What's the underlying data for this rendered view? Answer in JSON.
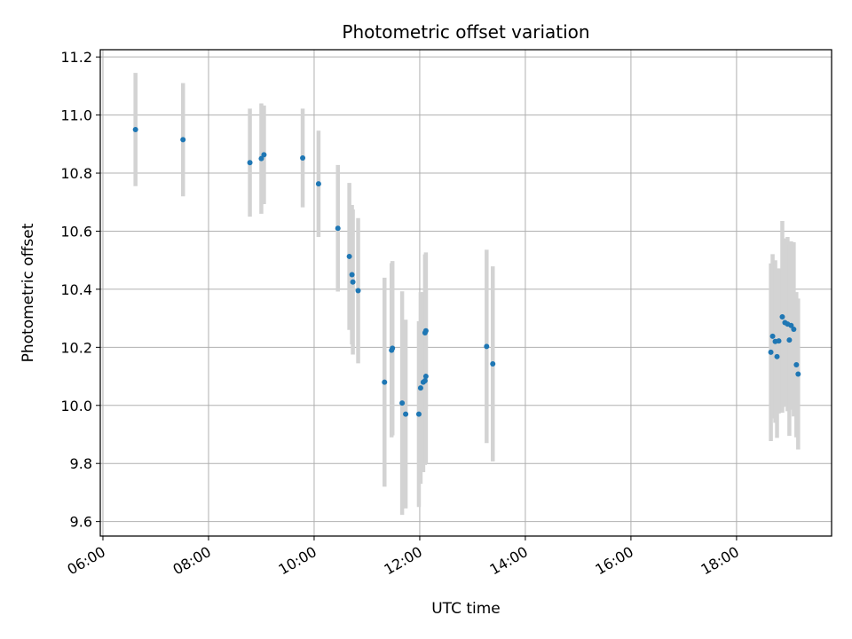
{
  "chart_data": {
    "type": "scatter",
    "title": "Photometric offset variation",
    "xlabel": "UTC time",
    "ylabel": "Photometric offset",
    "x_ticks": [
      "06:00",
      "08:00",
      "10:00",
      "12:00",
      "14:00",
      "16:00",
      "18:00"
    ],
    "y_ticks": [
      "9.6",
      "9.8",
      "10.0",
      "10.2",
      "10.4",
      "10.6",
      "10.8",
      "11.0",
      "11.2"
    ],
    "xlim": [
      "05:57",
      "19:48"
    ],
    "ylim": [
      9.55,
      11.225
    ],
    "grid": true,
    "marker_color": "#1f77b4",
    "errorbar_color": "#d3d3d3",
    "points": [
      {
        "time": "06:37",
        "value": 10.95,
        "error": 0.195
      },
      {
        "time": "07:31",
        "value": 10.915,
        "error": 0.195
      },
      {
        "time": "08:47",
        "value": 10.836,
        "error": 0.186
      },
      {
        "time": "09:00",
        "value": 10.85,
        "error": 0.19
      },
      {
        "time": "09:03",
        "value": 10.863,
        "error": 0.17
      },
      {
        "time": "09:47",
        "value": 10.852,
        "error": 0.17
      },
      {
        "time": "10:05",
        "value": 10.763,
        "error": 0.183
      },
      {
        "time": "10:27",
        "value": 10.61,
        "error": 0.218
      },
      {
        "time": "10:40",
        "value": 10.513,
        "error": 0.253
      },
      {
        "time": "10:43",
        "value": 10.45,
        "error": 0.24
      },
      {
        "time": "10:44",
        "value": 10.425,
        "error": 0.25
      },
      {
        "time": "10:50",
        "value": 10.395,
        "error": 0.25
      },
      {
        "time": "11:20",
        "value": 10.08,
        "error": 0.36
      },
      {
        "time": "11:28",
        "value": 10.19,
        "error": 0.3
      },
      {
        "time": "11:29",
        "value": 10.197,
        "error": 0.3
      },
      {
        "time": "11:40",
        "value": 10.008,
        "error": 0.385
      },
      {
        "time": "11:44",
        "value": 9.97,
        "error": 0.325
      },
      {
        "time": "11:59",
        "value": 9.97,
        "error": 0.32
      },
      {
        "time": "12:01",
        "value": 10.06,
        "error": 0.33
      },
      {
        "time": "12:04",
        "value": 10.08,
        "error": 0.31
      },
      {
        "time": "12:06",
        "value": 10.085,
        "error": 0.29
      },
      {
        "time": "12:07",
        "value": 10.1,
        "error": 0.3
      },
      {
        "time": "12:06",
        "value": 10.25,
        "error": 0.27
      },
      {
        "time": "12:07",
        "value": 10.257,
        "error": 0.27
      },
      {
        "time": "13:16",
        "value": 10.203,
        "error": 0.333
      },
      {
        "time": "13:23",
        "value": 10.143,
        "error": 0.336
      },
      {
        "time": "18:39",
        "value": 10.183,
        "error": 0.306
      },
      {
        "time": "18:41",
        "value": 10.238,
        "error": 0.283
      },
      {
        "time": "18:44",
        "value": 10.22,
        "error": 0.28
      },
      {
        "time": "18:46",
        "value": 10.168,
        "error": 0.28
      },
      {
        "time": "18:48",
        "value": 10.222,
        "error": 0.25
      },
      {
        "time": "18:52",
        "value": 10.305,
        "error": 0.33
      },
      {
        "time": "18:55",
        "value": 10.285,
        "error": 0.29
      },
      {
        "time": "18:58",
        "value": 10.28,
        "error": 0.3
      },
      {
        "time": "19:00",
        "value": 10.225,
        "error": 0.33
      },
      {
        "time": "19:02",
        "value": 10.275,
        "error": 0.29
      },
      {
        "time": "19:05",
        "value": 10.262,
        "error": 0.3
      },
      {
        "time": "19:08",
        "value": 10.14,
        "error": 0.25
      },
      {
        "time": "19:10",
        "value": 10.108,
        "error": 0.26
      }
    ]
  }
}
